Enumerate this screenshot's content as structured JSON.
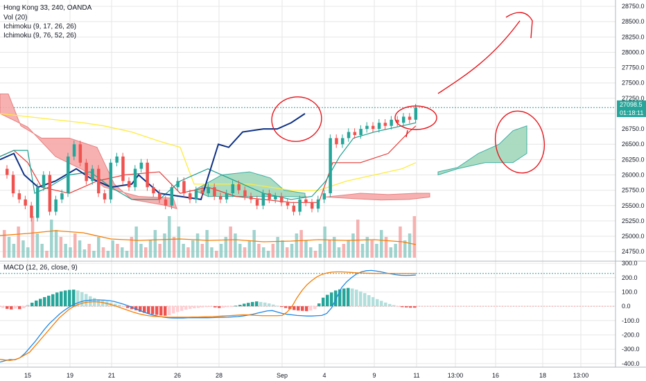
{
  "header": {
    "title": "Hong Kong 33, 240, OANDA",
    "indicators": [
      "Vol (20)",
      "Ichimoku (9, 17, 26, 26)",
      "Ichimoku (9, 76, 52, 26)"
    ],
    "macd_label": "MACD (12, 26, close, 9)"
  },
  "price_badge": {
    "price": "27098.5",
    "countdown": "01:18:11"
  },
  "colors": {
    "up": "#26a69a",
    "down": "#ef5350",
    "vol_up": "#8fcbc5",
    "vol_down": "#f5a3a3",
    "kumo_bear": "#f7a9a9",
    "kumo_bull": "#a3d9bc",
    "navy": "#0d2f83",
    "yellow": "#ffeb3b",
    "red": "#e53935",
    "teal": "#1a9e8e",
    "orange": "#f57c00",
    "macd_blue": "#1e88e5",
    "annotation": "#e8141b",
    "grid": "#e6e6e6"
  },
  "chart_data": [
    {
      "type": "candlestick",
      "title": "Hong Kong 33, 240, OANDA",
      "y_ticks": [
        "28750.0",
        "28500.0",
        "28250.0",
        "28000.0",
        "27750.0",
        "27500.0",
        "27250.0",
        "27000.0",
        "26750.0",
        "26500.0",
        "26250.0",
        "26000.0",
        "25750.0",
        "25500.0",
        "25250.0",
        "25000.0",
        "24750.0"
      ],
      "ylim": [
        24650,
        28830
      ],
      "x_ticks": [
        "15",
        "19",
        "21",
        "26",
        "28",
        "Sep",
        "4",
        "9",
        "11",
        "13:00",
        "16",
        "18",
        "13:00"
      ],
      "last_price": 27098.5,
      "legend": [
        "Vol (20)",
        "Ichimoku (9, 17, 26, 26)",
        "Ichimoku (9, 76, 52, 26)"
      ]
    },
    {
      "type": "macd",
      "title": "MACD (12, 26, close, 9)",
      "y_ticks": [
        "300.0",
        "200.0",
        "100.0",
        "0.0",
        "-100.0",
        "-200.0",
        "-300.0",
        "-400.0"
      ],
      "ylim": [
        -420,
        310
      ],
      "histogram": [
        -12,
        -18,
        -22,
        -16,
        -20,
        -14,
        10,
        25,
        40,
        52,
        64,
        74,
        84,
        96,
        104,
        110,
        114,
        116,
        110,
        98,
        86,
        70,
        58,
        48,
        40,
        34,
        26,
        18,
        10,
        -4,
        -12,
        -20,
        -28,
        -38,
        -46,
        -52,
        -56,
        -60,
        -64,
        -66,
        -62,
        -50,
        -40,
        -32,
        -24,
        -18,
        -14,
        -12,
        -8,
        -6,
        -4,
        -8,
        -12,
        -10,
        -6,
        -2,
        4,
        10,
        18,
        24,
        30,
        34,
        30,
        26,
        20,
        12,
        4,
        -4,
        -12,
        -20,
        -26,
        -30,
        -32,
        -34,
        -30,
        -20,
        20,
        60,
        80,
        96,
        110,
        118,
        124,
        128,
        124,
        116,
        104,
        92,
        78,
        64,
        50,
        38,
        26,
        16,
        8,
        -2,
        -6,
        -8,
        -10,
        -10
      ],
      "macd": [
        -390,
        -380,
        -372,
        -374,
        -360,
        -330,
        -290,
        -250,
        -205,
        -160,
        -120,
        -88,
        -55,
        -28,
        -5,
        14,
        28,
        38,
        42,
        44,
        44,
        43,
        40,
        34,
        24,
        14,
        2,
        -12,
        -26,
        -40,
        -52,
        -62,
        -70,
        -76,
        -80,
        -82,
        -82,
        -82,
        -80,
        -80,
        -80,
        -80,
        -80,
        -79,
        -78,
        -77,
        -76,
        -74,
        -72,
        -68,
        -62,
        -56,
        -48,
        -40,
        -32,
        -30,
        -40,
        -50,
        -56,
        -60,
        -64,
        -66,
        -68,
        -68,
        -66,
        -64,
        -50,
        -10,
        60,
        130,
        170,
        200,
        225,
        240,
        248,
        250,
        246,
        240,
        232,
        226,
        220,
        216,
        215,
        216,
        218
      ],
      "signal": [
        -370,
        -375,
        -378,
        -372,
        -360,
        -340,
        -320,
        -280,
        -240,
        -200,
        -160,
        -120,
        -80,
        -50,
        -20,
        0,
        15,
        25,
        30,
        32,
        30,
        24,
        16,
        6,
        -6,
        -18,
        -30,
        -42,
        -52,
        -60,
        -66,
        -70,
        -72,
        -74,
        -76,
        -76,
        -76,
        -76,
        -76,
        -75,
        -75,
        -74,
        -73,
        -72,
        -70,
        -68,
        -66,
        -64,
        -62,
        -60,
        -60,
        -62,
        -64,
        -66,
        -66,
        -66,
        -66,
        -64,
        -40,
        0,
        60,
        110,
        150,
        180,
        205,
        222,
        232,
        238,
        240,
        240,
        238,
        236,
        234,
        232,
        231,
        230,
        229,
        229,
        229,
        229,
        229,
        229,
        229,
        229,
        229
      ]
    }
  ]
}
